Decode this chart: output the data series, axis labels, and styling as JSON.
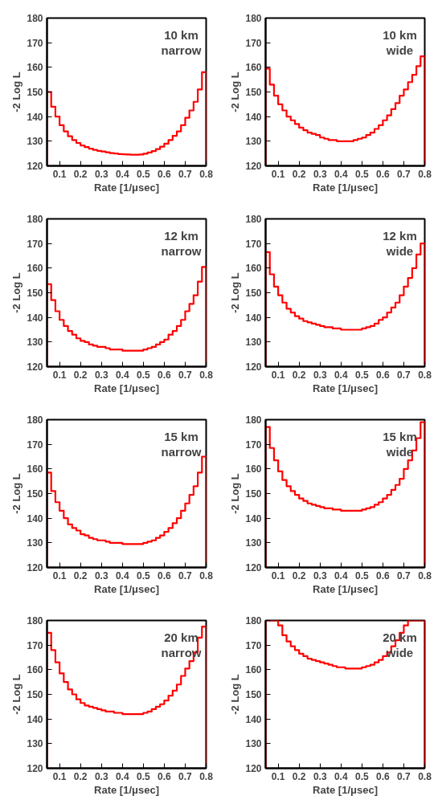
{
  "chart_data": [
    {
      "type": "histogram",
      "annotations": [
        "10 km",
        "narrow"
      ],
      "xlabel": "Rate [1/μsec]",
      "ylabel": "-2 Log L",
      "color": "#ff0000",
      "xlim": [
        0.04,
        0.8
      ],
      "ylim": [
        120,
        180
      ],
      "xticks": [
        0.1,
        0.2,
        0.3,
        0.4,
        0.5,
        0.6,
        0.7,
        0.8
      ],
      "yticks": [
        120,
        130,
        140,
        150,
        160,
        170,
        180
      ],
      "grid": false,
      "bins": [
        0.04,
        0.06,
        0.08,
        0.1,
        0.12,
        0.14,
        0.16,
        0.18,
        0.2,
        0.22,
        0.24,
        0.26,
        0.28,
        0.3,
        0.32,
        0.34,
        0.36,
        0.38,
        0.4,
        0.42,
        0.44,
        0.46,
        0.48,
        0.5,
        0.52,
        0.54,
        0.56,
        0.58,
        0.6,
        0.62,
        0.64,
        0.66,
        0.68,
        0.7,
        0.72,
        0.74,
        0.76,
        0.78,
        0.8
      ],
      "values": [
        150,
        144,
        140,
        136.5,
        134,
        132,
        130.5,
        129.3,
        128.3,
        127.6,
        127,
        126.5,
        126.1,
        125.8,
        125.5,
        125.2,
        125,
        124.8,
        124.7,
        124.6,
        124.5,
        124.5,
        124.6,
        124.9,
        125.4,
        126,
        126.8,
        127.8,
        129,
        130.5,
        132.2,
        134,
        136.5,
        139.5,
        142.5,
        146,
        151,
        158
      ]
    },
    {
      "type": "histogram",
      "annotations": [
        "10 km",
        "wide"
      ],
      "xlabel": "Rate [1/μsec]",
      "ylabel": "-2 Log L",
      "color": "#ff0000",
      "xlim": [
        0.04,
        0.8
      ],
      "ylim": [
        120,
        180
      ],
      "xticks": [
        0.1,
        0.2,
        0.3,
        0.4,
        0.5,
        0.6,
        0.7,
        0.8
      ],
      "yticks": [
        120,
        130,
        140,
        150,
        160,
        170,
        180
      ],
      "grid": false,
      "bins": [
        0.04,
        0.06,
        0.08,
        0.1,
        0.12,
        0.14,
        0.16,
        0.18,
        0.2,
        0.22,
        0.24,
        0.26,
        0.28,
        0.3,
        0.32,
        0.34,
        0.36,
        0.38,
        0.4,
        0.42,
        0.44,
        0.46,
        0.48,
        0.5,
        0.52,
        0.54,
        0.56,
        0.58,
        0.6,
        0.62,
        0.64,
        0.66,
        0.68,
        0.7,
        0.72,
        0.74,
        0.76,
        0.78,
        0.8
      ],
      "values": [
        159.5,
        153,
        148.5,
        145,
        142.5,
        140,
        138.5,
        137,
        135.5,
        134.5,
        133.5,
        133,
        132.5,
        131.5,
        131,
        130.5,
        130.5,
        130,
        130,
        130,
        130,
        130.5,
        131,
        131.5,
        132.5,
        133.5,
        135,
        136.5,
        138.5,
        140.5,
        143,
        145.5,
        148.5,
        151,
        154,
        157,
        160.5,
        164.5
      ]
    },
    {
      "type": "histogram",
      "annotations": [
        "12 km",
        "narrow"
      ],
      "xlabel": "Rate [1/μsec]",
      "ylabel": "-2 Log L",
      "color": "#ff0000",
      "xlim": [
        0.04,
        0.8
      ],
      "ylim": [
        120,
        180
      ],
      "xticks": [
        0.1,
        0.2,
        0.3,
        0.4,
        0.5,
        0.6,
        0.7,
        0.8
      ],
      "yticks": [
        120,
        130,
        140,
        150,
        160,
        170,
        180
      ],
      "grid": false,
      "bins": [
        0.04,
        0.06,
        0.08,
        0.1,
        0.12,
        0.14,
        0.16,
        0.18,
        0.2,
        0.22,
        0.24,
        0.26,
        0.28,
        0.3,
        0.32,
        0.34,
        0.36,
        0.38,
        0.4,
        0.42,
        0.44,
        0.46,
        0.48,
        0.5,
        0.52,
        0.54,
        0.56,
        0.58,
        0.6,
        0.62,
        0.64,
        0.66,
        0.68,
        0.7,
        0.72,
        0.74,
        0.76,
        0.78,
        0.8
      ],
      "values": [
        153.5,
        147,
        142.5,
        139,
        136.5,
        134.5,
        133,
        131.5,
        130.5,
        130,
        129,
        128.5,
        128,
        128,
        127.5,
        127,
        127,
        127,
        126.5,
        126.5,
        126.5,
        126.5,
        126.5,
        127,
        127.5,
        128,
        129,
        130,
        131,
        133,
        134.5,
        136.5,
        139,
        142.5,
        145.5,
        149,
        154.5,
        160.5
      ]
    },
    {
      "type": "histogram",
      "annotations": [
        "12 km",
        "wide"
      ],
      "xlabel": "Rate [1/μsec]",
      "ylabel": "-2 Log L",
      "color": "#ff0000",
      "xlim": [
        0.04,
        0.8
      ],
      "ylim": [
        120,
        180
      ],
      "xticks": [
        0.1,
        0.2,
        0.3,
        0.4,
        0.5,
        0.6,
        0.7,
        0.8
      ],
      "yticks": [
        120,
        130,
        140,
        150,
        160,
        170,
        180
      ],
      "grid": false,
      "bins": [
        0.04,
        0.06,
        0.08,
        0.1,
        0.12,
        0.14,
        0.16,
        0.18,
        0.2,
        0.22,
        0.24,
        0.26,
        0.28,
        0.3,
        0.32,
        0.34,
        0.36,
        0.38,
        0.4,
        0.42,
        0.44,
        0.46,
        0.48,
        0.5,
        0.52,
        0.54,
        0.56,
        0.58,
        0.6,
        0.62,
        0.64,
        0.66,
        0.68,
        0.7,
        0.72,
        0.74,
        0.76,
        0.78,
        0.8
      ],
      "values": [
        166.5,
        157.5,
        152.5,
        149,
        146,
        143.5,
        142,
        140.5,
        139.5,
        138.5,
        138,
        137.5,
        137,
        136.5,
        136,
        136,
        135.5,
        135.5,
        135,
        135,
        135,
        135,
        135,
        135.5,
        136,
        136.5,
        137.5,
        139,
        140,
        142,
        144,
        146,
        149,
        152.5,
        156,
        160,
        165.5,
        170
      ]
    },
    {
      "type": "histogram",
      "annotations": [
        "15 km",
        "narrow"
      ],
      "xlabel": "Rate [1/μsec]",
      "ylabel": "-2 Log L",
      "color": "#ff0000",
      "xlim": [
        0.04,
        0.8
      ],
      "ylim": [
        120,
        180
      ],
      "xticks": [
        0.1,
        0.2,
        0.3,
        0.4,
        0.5,
        0.6,
        0.7,
        0.8
      ],
      "yticks": [
        120,
        130,
        140,
        150,
        160,
        170,
        180
      ],
      "grid": false,
      "bins": [
        0.04,
        0.06,
        0.08,
        0.1,
        0.12,
        0.14,
        0.16,
        0.18,
        0.2,
        0.22,
        0.24,
        0.26,
        0.28,
        0.3,
        0.32,
        0.34,
        0.36,
        0.38,
        0.4,
        0.42,
        0.44,
        0.46,
        0.48,
        0.5,
        0.52,
        0.54,
        0.56,
        0.58,
        0.6,
        0.62,
        0.64,
        0.66,
        0.68,
        0.7,
        0.72,
        0.74,
        0.76,
        0.78,
        0.8
      ],
      "values": [
        158.5,
        151,
        146.5,
        143,
        140,
        137.5,
        136,
        135,
        133.5,
        133,
        132,
        131.5,
        131,
        131,
        130.5,
        130,
        130,
        130,
        129.5,
        129.5,
        129.5,
        129.5,
        129.5,
        130,
        130.5,
        131,
        132,
        133,
        134.5,
        136,
        138,
        140,
        143,
        146,
        149.5,
        153,
        158.5,
        165
      ]
    },
    {
      "type": "histogram",
      "annotations": [
        "15 km",
        "wide"
      ],
      "xlabel": "Rate [1/μsec]",
      "ylabel": "-2 Log L",
      "color": "#ff0000",
      "xlim": [
        0.04,
        0.8
      ],
      "ylim": [
        120,
        180
      ],
      "xticks": [
        0.1,
        0.2,
        0.3,
        0.4,
        0.5,
        0.6,
        0.7,
        0.8
      ],
      "yticks": [
        120,
        130,
        140,
        150,
        160,
        170,
        180
      ],
      "grid": false,
      "bins": [
        0.04,
        0.06,
        0.08,
        0.1,
        0.12,
        0.14,
        0.16,
        0.18,
        0.2,
        0.22,
        0.24,
        0.26,
        0.28,
        0.3,
        0.32,
        0.34,
        0.36,
        0.38,
        0.4,
        0.42,
        0.44,
        0.46,
        0.48,
        0.5,
        0.52,
        0.54,
        0.56,
        0.58,
        0.6,
        0.62,
        0.64,
        0.66,
        0.68,
        0.7,
        0.72,
        0.74,
        0.76,
        0.78,
        0.8
      ],
      "values": [
        177,
        168.5,
        163.5,
        159,
        155.5,
        153,
        151,
        149.5,
        148,
        147,
        146,
        145.5,
        145,
        144.5,
        144,
        144,
        143.5,
        143.5,
        143,
        143,
        143,
        143,
        143,
        143.5,
        144,
        144.5,
        145.5,
        146.5,
        148,
        149.5,
        151.5,
        153.5,
        156,
        160,
        163.5,
        167.5,
        172.5,
        179
      ]
    },
    {
      "type": "histogram",
      "annotations": [
        "20 km",
        "narrow"
      ],
      "xlabel": "Rate [1/μsec]",
      "ylabel": "-2 Log L",
      "color": "#ff0000",
      "xlim": [
        0.04,
        0.8
      ],
      "ylim": [
        120,
        180
      ],
      "xticks": [
        0.1,
        0.2,
        0.3,
        0.4,
        0.5,
        0.6,
        0.7,
        0.8
      ],
      "yticks": [
        120,
        130,
        140,
        150,
        160,
        170,
        180
      ],
      "grid": false,
      "bins": [
        0.04,
        0.06,
        0.08,
        0.1,
        0.12,
        0.14,
        0.16,
        0.18,
        0.2,
        0.22,
        0.24,
        0.26,
        0.28,
        0.3,
        0.32,
        0.34,
        0.36,
        0.38,
        0.4,
        0.42,
        0.44,
        0.46,
        0.48,
        0.5,
        0.52,
        0.54,
        0.56,
        0.58,
        0.6,
        0.62,
        0.64,
        0.66,
        0.68,
        0.7,
        0.72,
        0.74,
        0.76,
        0.78,
        0.8
      ],
      "values": [
        175,
        168,
        163,
        158.5,
        155,
        152,
        150,
        148,
        146.5,
        145.5,
        145,
        144.5,
        144,
        143.5,
        143,
        143,
        142.5,
        142.5,
        142,
        142,
        142,
        142,
        142,
        142.5,
        143,
        144,
        145,
        146,
        147.5,
        149.5,
        151.5,
        154,
        157.5,
        160.5,
        163.5,
        167,
        173,
        177.5
      ]
    },
    {
      "type": "histogram",
      "annotations": [
        "20 km",
        "wide"
      ],
      "xlabel": "Rate [1/μsec]",
      "ylabel": "-2 Log L",
      "color": "#ff0000",
      "xlim": [
        0.04,
        0.8
      ],
      "ylim": [
        120,
        180
      ],
      "xticks": [
        0.1,
        0.2,
        0.3,
        0.4,
        0.5,
        0.6,
        0.7,
        0.8
      ],
      "yticks": [
        120,
        130,
        140,
        150,
        160,
        170,
        180
      ],
      "grid": false,
      "bins": [
        0.04,
        0.06,
        0.08,
        0.1,
        0.12,
        0.14,
        0.16,
        0.18,
        0.2,
        0.22,
        0.24,
        0.26,
        0.28,
        0.3,
        0.32,
        0.34,
        0.36,
        0.38,
        0.4,
        0.42,
        0.44,
        0.46,
        0.48,
        0.5,
        0.52,
        0.54,
        0.56,
        0.58,
        0.6,
        0.62,
        0.64,
        0.66,
        0.68,
        0.7,
        0.72,
        0.74,
        0.76,
        0.78,
        0.8
      ],
      "values": [
        180,
        180,
        180,
        178,
        174,
        171.5,
        169.5,
        168,
        166.5,
        165.5,
        164.5,
        164,
        163.5,
        163,
        162.5,
        162,
        161.5,
        161,
        161,
        160.5,
        160.5,
        160.5,
        160.5,
        161,
        161.5,
        162,
        163,
        164,
        165.5,
        167,
        169.5,
        172,
        175,
        178,
        180,
        180,
        180,
        180
      ]
    }
  ]
}
